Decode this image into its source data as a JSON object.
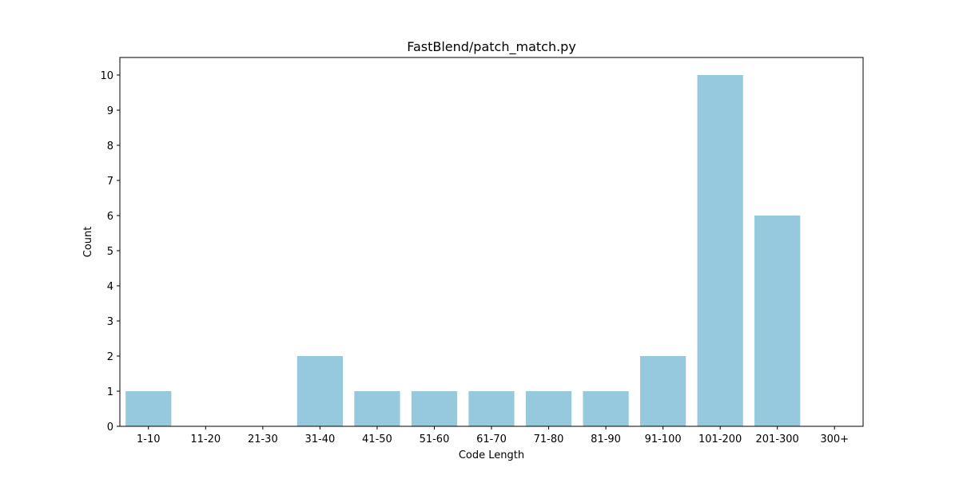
{
  "chart_data": {
    "type": "bar",
    "title": "FastBlend/patch_match.py",
    "xlabel": "Code Length",
    "ylabel": "Count",
    "categories": [
      "1-10",
      "11-20",
      "21-30",
      "31-40",
      "41-50",
      "51-60",
      "61-70",
      "71-80",
      "81-90",
      "91-100",
      "101-200",
      "201-300",
      "300+"
    ],
    "values": [
      1,
      0,
      0,
      2,
      1,
      1,
      1,
      1,
      1,
      2,
      10,
      6,
      0
    ],
    "yticks": [
      0,
      1,
      2,
      3,
      4,
      5,
      6,
      7,
      8,
      9,
      10
    ],
    "ylim": [
      0,
      10.5
    ],
    "bar_color": "#96c9de",
    "grid": false,
    "legend": "none"
  }
}
